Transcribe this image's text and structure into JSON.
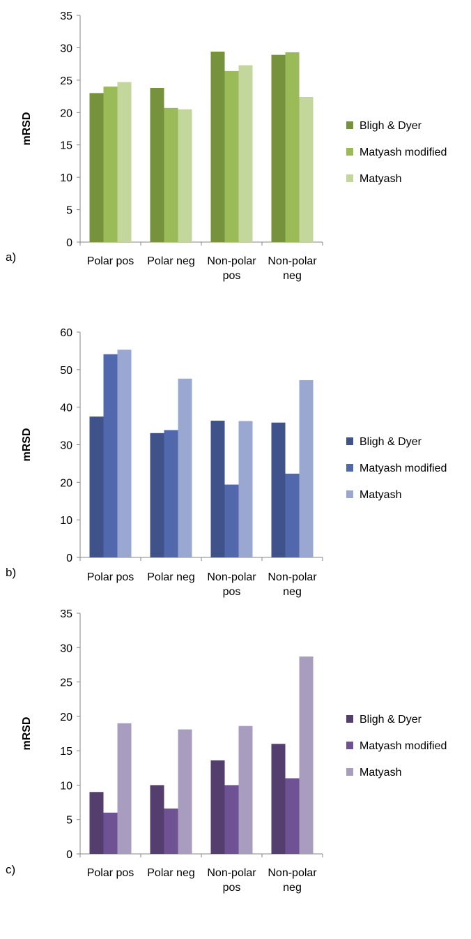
{
  "chart_data": [
    {
      "panel_label": "a)",
      "type": "bar",
      "ylabel": "mRSD",
      "ylim": [
        0,
        35
      ],
      "yticks": [
        0,
        5,
        10,
        15,
        20,
        25,
        30,
        35
      ],
      "categories": [
        [
          "Polar pos"
        ],
        [
          "Polar neg"
        ],
        [
          "Non-polar",
          "pos"
        ],
        [
          "Non-polar",
          "neg"
        ]
      ],
      "series": [
        {
          "name": "Bligh & Dyer",
          "color": "#76923c",
          "values": [
            23.0,
            23.8,
            29.4,
            28.9
          ]
        },
        {
          "name": "Matyash modified",
          "color": "#9bbb59",
          "values": [
            24.0,
            20.7,
            26.4,
            29.3
          ]
        },
        {
          "name": "Matyash",
          "color": "#c3d69b",
          "values": [
            24.7,
            20.5,
            27.3,
            22.4
          ]
        }
      ]
    },
    {
      "panel_label": "b)",
      "type": "bar",
      "ylabel": "mRSD",
      "ylim": [
        0,
        60
      ],
      "yticks": [
        0,
        10,
        20,
        30,
        40,
        50,
        60
      ],
      "categories": [
        [
          "Polar pos"
        ],
        [
          "Polar neg"
        ],
        [
          "Non-polar",
          "pos"
        ],
        [
          "Non-polar",
          "neg"
        ]
      ],
      "series": [
        {
          "name": "Bligh & Dyer",
          "color": "#3f5289",
          "values": [
            37.5,
            33.1,
            36.4,
            35.9
          ]
        },
        {
          "name": "Matyash modified",
          "color": "#5168ad",
          "values": [
            54.1,
            33.9,
            19.4,
            22.3
          ]
        },
        {
          "name": "Matyash",
          "color": "#9aa8d1",
          "values": [
            55.3,
            47.6,
            36.3,
            47.2
          ]
        }
      ]
    },
    {
      "panel_label": "c)",
      "type": "bar",
      "ylabel": "mRSD",
      "ylim": [
        0,
        35
      ],
      "yticks": [
        0,
        5,
        10,
        15,
        20,
        25,
        30,
        35
      ],
      "categories": [
        [
          "Polar pos"
        ],
        [
          "Polar neg"
        ],
        [
          "Non-polar",
          "pos"
        ],
        [
          "Non-polar",
          "neg"
        ]
      ],
      "series": [
        {
          "name": "Bligh & Dyer",
          "color": "#533e6e",
          "values": [
            9.0,
            10.0,
            13.6,
            16.0
          ]
        },
        {
          "name": "Matyash modified",
          "color": "#6e5293",
          "values": [
            6.0,
            6.6,
            10.0,
            11.0
          ]
        },
        {
          "name": "Matyash",
          "color": "#a89cbf",
          "values": [
            19.0,
            18.1,
            18.6,
            28.7
          ]
        }
      ]
    }
  ]
}
